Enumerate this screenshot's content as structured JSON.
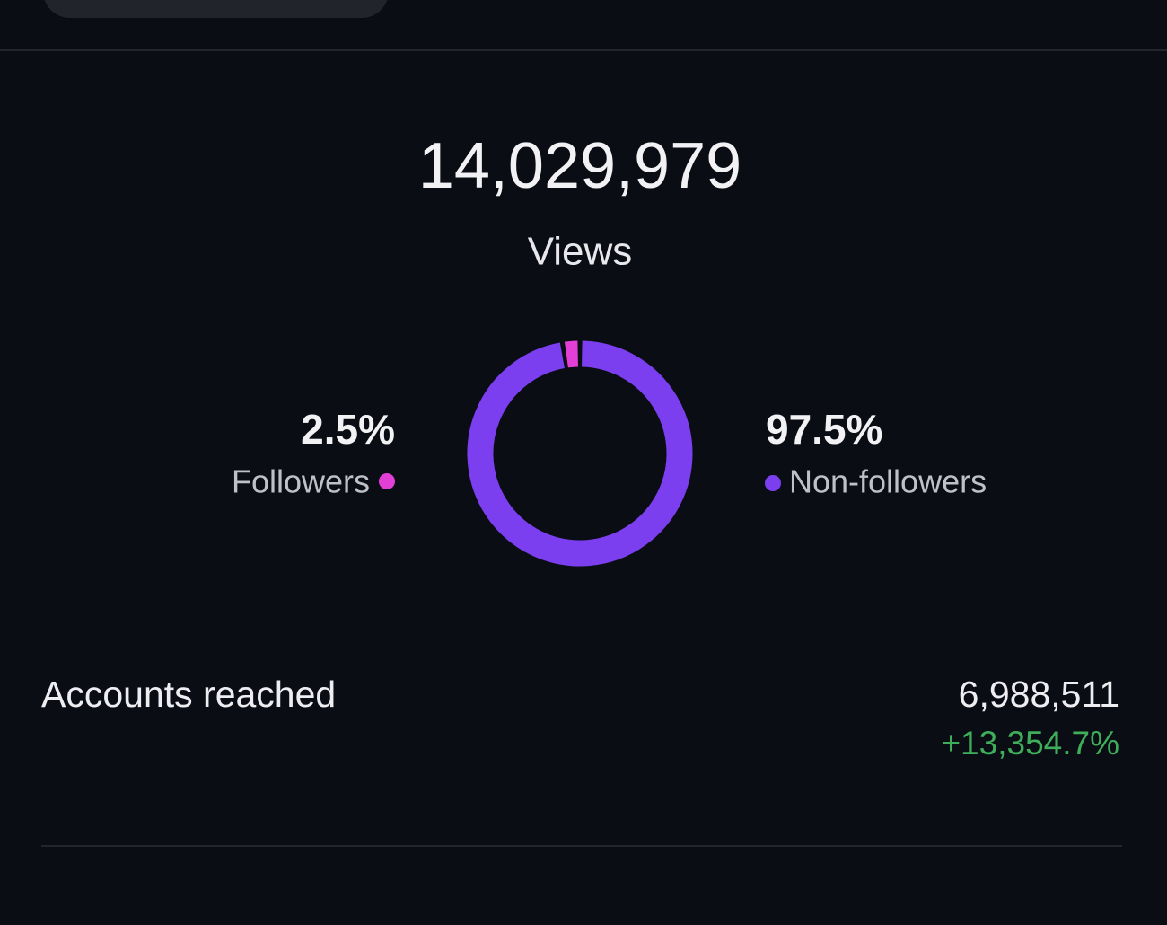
{
  "header": {
    "total": "14,029,979",
    "label": "Views"
  },
  "chart_data": {
    "type": "pie",
    "donut": true,
    "categories": [
      "Followers",
      "Non-followers"
    ],
    "values": [
      2.5,
      97.5
    ],
    "value_labels": [
      "2.5%",
      "97.5%"
    ],
    "colors": [
      "#e23fd6",
      "#7c3ff0"
    ]
  },
  "metric": {
    "label": "Accounts reached",
    "value": "6,988,511",
    "change": "+13,354.7%"
  }
}
